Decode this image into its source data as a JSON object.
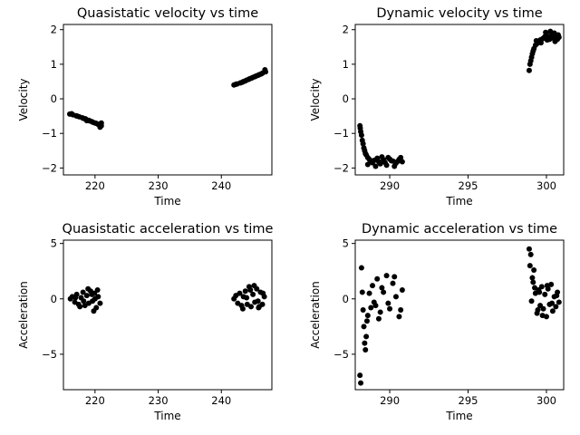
{
  "chart_data": [
    {
      "type": "scatter",
      "title": "Quasistatic velocity vs time",
      "xlabel": "Time",
      "ylabel": "Velocity",
      "xlim": [
        215,
        248
      ],
      "ylim": [
        -2.2,
        2.15
      ],
      "xticks": [
        220,
        230,
        240
      ],
      "yticks": [
        -2,
        -1,
        0,
        1,
        2
      ],
      "marker_color": "#000000",
      "series": [
        {
          "x": [
            216.0,
            216.5,
            217.0,
            217.5,
            218.0,
            218.5,
            219.0,
            219.5,
            220.0,
            220.5,
            221.0,
            216.3,
            217.2,
            218.2,
            219.2,
            220.2,
            220.8,
            221.0,
            218.7,
            219.7
          ],
          "y": [
            -0.44,
            -0.46,
            -0.49,
            -0.52,
            -0.55,
            -0.58,
            -0.62,
            -0.66,
            -0.7,
            -0.74,
            -0.78,
            -0.43,
            -0.5,
            -0.57,
            -0.64,
            -0.71,
            -0.82,
            -0.7,
            -0.63,
            -0.68
          ]
        },
        {
          "x": [
            242.0,
            242.5,
            243.0,
            243.5,
            244.0,
            244.5,
            245.0,
            245.5,
            246.0,
            246.5,
            247.0,
            242.3,
            243.3,
            244.3,
            245.3,
            246.3,
            246.9,
            243.8,
            244.8,
            245.8
          ],
          "y": [
            0.4,
            0.43,
            0.46,
            0.5,
            0.54,
            0.58,
            0.62,
            0.66,
            0.7,
            0.74,
            0.78,
            0.42,
            0.48,
            0.56,
            0.64,
            0.72,
            0.84,
            0.52,
            0.6,
            0.68
          ]
        }
      ]
    },
    {
      "type": "scatter",
      "title": "Dynamic velocity vs time",
      "xlabel": "Time",
      "ylabel": "Velocity",
      "xlim": [
        287.8,
        301.1
      ],
      "ylim": [
        -2.2,
        2.15
      ],
      "xticks": [
        290,
        295,
        300
      ],
      "yticks": [
        -2,
        -1,
        0,
        1,
        2
      ],
      "marker_color": "#000000",
      "series": [
        {
          "x": [
            288.1,
            288.12,
            288.15,
            288.2,
            288.25,
            288.3,
            288.35,
            288.4,
            288.45,
            288.5,
            288.6,
            288.7,
            288.8,
            288.9,
            289.0,
            289.2,
            289.4,
            289.6,
            289.8,
            290.0,
            290.2,
            290.4,
            290.6,
            290.8,
            288.6,
            289.1,
            289.5,
            289.9,
            290.3,
            290.7,
            289.3,
            289.7,
            290.1,
            290.5
          ],
          "y": [
            -0.78,
            -0.85,
            -0.95,
            -1.05,
            -1.2,
            -1.3,
            -1.42,
            -1.5,
            -1.58,
            -1.62,
            -1.7,
            -1.75,
            -1.8,
            -1.85,
            -1.78,
            -1.72,
            -1.88,
            -1.76,
            -1.92,
            -1.74,
            -1.8,
            -1.86,
            -1.75,
            -1.82,
            -1.9,
            -1.95,
            -1.68,
            -1.7,
            -1.95,
            -1.7,
            -1.82,
            -1.84,
            -1.79,
            -1.81
          ]
        },
        {
          "x": [
            298.9,
            298.95,
            299.0,
            299.05,
            299.1,
            299.15,
            299.2,
            299.3,
            299.4,
            299.5,
            299.6,
            299.7,
            299.8,
            299.9,
            300.0,
            300.1,
            300.2,
            300.3,
            300.4,
            300.5,
            300.6,
            300.7,
            300.8,
            299.35,
            299.65,
            299.95,
            300.25,
            300.55,
            300.75,
            300.05
          ],
          "y": [
            0.82,
            1.0,
            1.1,
            1.2,
            1.3,
            1.38,
            1.45,
            1.55,
            1.6,
            1.65,
            1.7,
            1.72,
            1.75,
            1.8,
            1.85,
            1.78,
            1.72,
            1.82,
            1.76,
            1.9,
            1.8,
            1.72,
            1.78,
            1.68,
            1.62,
            1.92,
            1.95,
            1.66,
            1.85,
            1.7
          ]
        }
      ]
    },
    {
      "type": "scatter",
      "title": "Quasistatic acceleration vs time",
      "xlabel": "Time",
      "ylabel": "Acceleration",
      "xlim": [
        215,
        248
      ],
      "ylim": [
        -8.2,
        5.3
      ],
      "xticks": [
        220,
        230,
        240
      ],
      "yticks": [
        -5,
        0,
        5
      ],
      "marker_color": "#000000",
      "series": [
        {
          "x": [
            216.1,
            216.4,
            216.8,
            217.1,
            217.4,
            217.8,
            218.1,
            218.4,
            218.7,
            219.0,
            219.3,
            219.6,
            219.9,
            220.2,
            220.5,
            220.8,
            217.6,
            218.9,
            219.8,
            220.4,
            216.9,
            218.2,
            219.5,
            220.0
          ],
          "y": [
            0.0,
            0.2,
            -0.3,
            0.4,
            -0.5,
            0.1,
            0.6,
            -0.6,
            0.3,
            -0.4,
            0.7,
            -0.2,
            0.5,
            -0.8,
            0.2,
            -0.4,
            -0.7,
            0.9,
            -1.1,
            0.8,
            0.1,
            -0.2,
            0.4,
            0.0
          ]
        },
        {
          "x": [
            242.0,
            242.3,
            242.6,
            242.9,
            243.2,
            243.5,
            243.8,
            244.1,
            244.4,
            244.7,
            245.0,
            245.3,
            245.6,
            245.9,
            246.2,
            246.5,
            246.8,
            243.4,
            244.6,
            245.2,
            246.0,
            246.6,
            244.0,
            245.8
          ],
          "y": [
            0.0,
            0.3,
            -0.4,
            0.5,
            -0.6,
            0.2,
            0.7,
            -0.5,
            1.1,
            -0.7,
            0.4,
            -0.3,
            0.9,
            -0.8,
            0.6,
            -0.5,
            0.2,
            -0.9,
            0.8,
            1.2,
            -0.7,
            0.5,
            0.1,
            -0.2
          ]
        }
      ]
    },
    {
      "type": "scatter",
      "title": "Dynamic acceleration vs time",
      "xlabel": "Time",
      "ylabel": "Acceleration",
      "xlim": [
        287.8,
        301.1
      ],
      "ylim": [
        -8.2,
        5.3
      ],
      "xticks": [
        290,
        295,
        300
      ],
      "yticks": [
        -5,
        0,
        5
      ],
      "marker_color": "#000000",
      "series": [
        {
          "x": [
            288.1,
            288.15,
            288.2,
            288.25,
            288.3,
            288.35,
            288.4,
            288.5,
            288.6,
            288.7,
            288.8,
            288.9,
            289.0,
            289.2,
            289.4,
            289.6,
            289.8,
            290.0,
            290.2,
            290.4,
            290.6,
            290.8,
            288.45,
            289.1,
            289.5,
            289.9,
            290.3,
            290.7,
            288.55,
            289.3
          ],
          "y": [
            -6.9,
            -7.6,
            2.8,
            0.6,
            -1.0,
            -2.5,
            -4.0,
            -3.4,
            -1.5,
            0.5,
            -0.8,
            1.2,
            -0.3,
            1.8,
            -1.2,
            0.6,
            2.1,
            -0.9,
            1.4,
            0.2,
            -1.6,
            0.8,
            -4.6,
            -0.6,
            1.0,
            -0.4,
            2.0,
            -1.0,
            -2.0,
            -1.8
          ]
        },
        {
          "x": [
            298.9,
            298.95,
            299.0,
            299.05,
            299.1,
            299.2,
            299.3,
            299.4,
            299.5,
            299.6,
            299.7,
            299.8,
            299.9,
            300.0,
            300.1,
            300.2,
            300.3,
            300.4,
            300.5,
            300.6,
            300.7,
            300.8,
            299.15,
            299.45,
            299.75,
            300.05,
            300.35,
            300.65,
            299.25,
            299.55
          ],
          "y": [
            4.5,
            3.0,
            4.0,
            -0.2,
            1.9,
            2.6,
            0.5,
            -1.3,
            0.8,
            -0.6,
            1.1,
            -0.9,
            0.4,
            -1.6,
            0.9,
            -0.5,
            1.3,
            -1.1,
            0.2,
            -0.7,
            0.6,
            -0.3,
            1.5,
            -1.0,
            -1.5,
            1.2,
            -0.4,
            0.3,
            1.0,
            0.6
          ]
        }
      ]
    }
  ]
}
